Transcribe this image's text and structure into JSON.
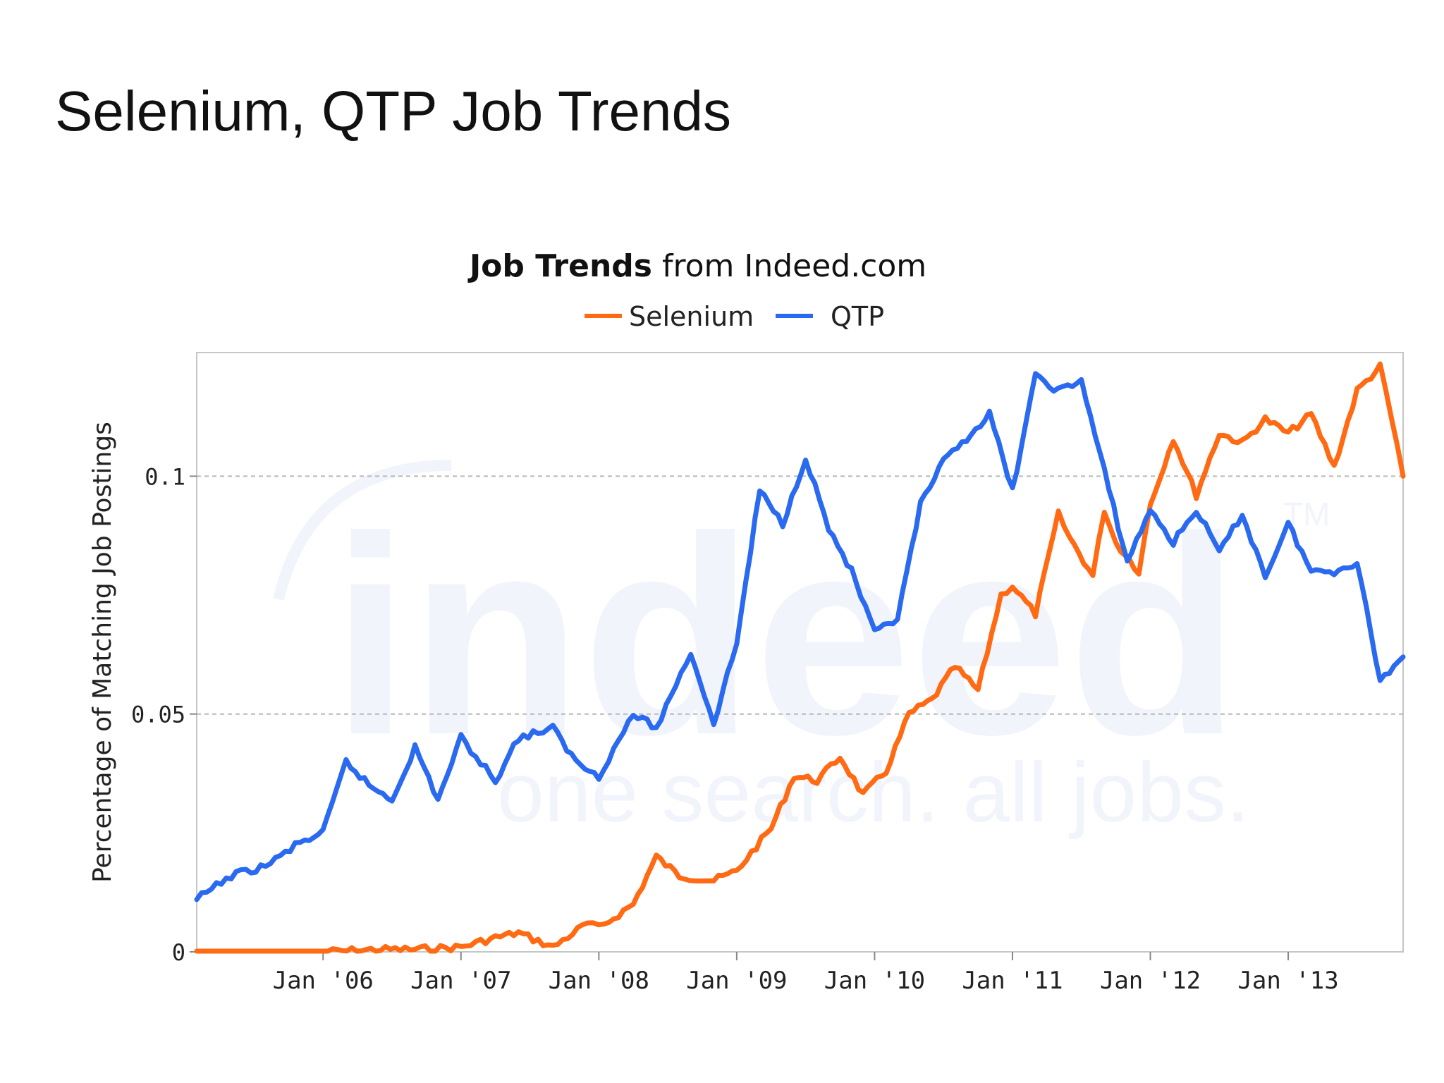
{
  "slide": {
    "title": "Selenium, QTP Job Trends"
  },
  "chart_data": {
    "type": "line",
    "title_bold": "Job Trends",
    "title_rest": " from Indeed.com",
    "ylabel": "Percentage of Matching Job Postings",
    "xlabel": "",
    "x_range": [
      "2005-02",
      "2013-11"
    ],
    "ylim": [
      0,
      0.126
    ],
    "y_ticks": [
      0,
      0.05,
      0.1
    ],
    "y_tick_labels": [
      "0",
      "0.05",
      "0.1"
    ],
    "x_ticks": [
      "2006-01",
      "2007-01",
      "2008-01",
      "2009-01",
      "2010-01",
      "2011-01",
      "2012-01",
      "2013-01"
    ],
    "x_tick_labels": [
      "Jan '06",
      "Jan '07",
      "Jan '08",
      "Jan '09",
      "Jan '10",
      "Jan '11",
      "Jan '12",
      "Jan '13"
    ],
    "grid": "horizontal dashed at 0.05 and 0.1",
    "legend_position": "top-center",
    "watermark": {
      "logo": "indeed",
      "tagline": "one search. all jobs.",
      "tm": "TM"
    },
    "series": [
      {
        "name": "Selenium",
        "color": "#ff6a13",
        "points": [
          [
            "2005-02",
            0
          ],
          [
            "2006-01",
            0
          ],
          [
            "2006-06",
            0.0005
          ],
          [
            "2006-09",
            0.0005
          ],
          [
            "2007-01",
            0.001
          ],
          [
            "2007-04",
            0.003
          ],
          [
            "2007-06",
            0.004
          ],
          [
            "2007-09",
            0.001
          ],
          [
            "2007-12",
            0.006
          ],
          [
            "2008-01",
            0.005
          ],
          [
            "2008-04",
            0.01
          ],
          [
            "2008-06",
            0.02
          ],
          [
            "2008-08",
            0.016
          ],
          [
            "2008-11",
            0.015
          ],
          [
            "2009-01",
            0.017
          ],
          [
            "2009-04",
            0.026
          ],
          [
            "2009-06",
            0.037
          ],
          [
            "2009-08",
            0.036
          ],
          [
            "2009-10",
            0.041
          ],
          [
            "2009-12",
            0.033
          ],
          [
            "2010-02",
            0.038
          ],
          [
            "2010-04",
            0.05
          ],
          [
            "2010-06",
            0.053
          ],
          [
            "2010-08",
            0.06
          ],
          [
            "2010-10",
            0.055
          ],
          [
            "2010-12",
            0.075
          ],
          [
            "2011-01",
            0.077
          ],
          [
            "2011-03",
            0.071
          ],
          [
            "2011-05",
            0.092
          ],
          [
            "2011-06",
            0.087
          ],
          [
            "2011-08",
            0.079
          ],
          [
            "2011-09",
            0.093
          ],
          [
            "2011-10",
            0.086
          ],
          [
            "2011-12",
            0.08
          ],
          [
            "2012-01",
            0.094
          ],
          [
            "2012-03",
            0.108
          ],
          [
            "2012-05",
            0.096
          ],
          [
            "2012-07",
            0.109
          ],
          [
            "2012-09",
            0.107
          ],
          [
            "2012-11",
            0.112
          ],
          [
            "2013-01",
            0.109
          ],
          [
            "2013-03",
            0.113
          ],
          [
            "2013-05",
            0.102
          ],
          [
            "2013-07",
            0.118
          ],
          [
            "2013-09",
            0.123
          ],
          [
            "2013-10",
            0.112
          ],
          [
            "2013-11",
            0.1
          ]
        ]
      },
      {
        "name": "QTP",
        "color": "#2a6af0",
        "points": [
          [
            "2005-02",
            0.011
          ],
          [
            "2005-05",
            0.016
          ],
          [
            "2005-08",
            0.018
          ],
          [
            "2005-11",
            0.023
          ],
          [
            "2006-01",
            0.025
          ],
          [
            "2006-03",
            0.04
          ],
          [
            "2006-05",
            0.035
          ],
          [
            "2006-07",
            0.032
          ],
          [
            "2006-09",
            0.043
          ],
          [
            "2006-11",
            0.032
          ],
          [
            "2007-01",
            0.045
          ],
          [
            "2007-04",
            0.036
          ],
          [
            "2007-06",
            0.045
          ],
          [
            "2007-09",
            0.047
          ],
          [
            "2007-11",
            0.04
          ],
          [
            "2008-01",
            0.037
          ],
          [
            "2008-04",
            0.05
          ],
          [
            "2008-06",
            0.047
          ],
          [
            "2008-09",
            0.063
          ],
          [
            "2008-11",
            0.048
          ],
          [
            "2009-01",
            0.065
          ],
          [
            "2009-03",
            0.097
          ],
          [
            "2009-05",
            0.09
          ],
          [
            "2009-07",
            0.104
          ],
          [
            "2009-09",
            0.089
          ],
          [
            "2009-11",
            0.08
          ],
          [
            "2010-01",
            0.067
          ],
          [
            "2010-03",
            0.07
          ],
          [
            "2010-05",
            0.094
          ],
          [
            "2010-07",
            0.103
          ],
          [
            "2010-09",
            0.108
          ],
          [
            "2010-11",
            0.113
          ],
          [
            "2011-01",
            0.097
          ],
          [
            "2011-03",
            0.121
          ],
          [
            "2011-05",
            0.118
          ],
          [
            "2011-07",
            0.12
          ],
          [
            "2011-09",
            0.101
          ],
          [
            "2011-11",
            0.082
          ],
          [
            "2012-01",
            0.093
          ],
          [
            "2012-03",
            0.086
          ],
          [
            "2012-05",
            0.093
          ],
          [
            "2012-07",
            0.084
          ],
          [
            "2012-09",
            0.092
          ],
          [
            "2012-11",
            0.079
          ],
          [
            "2013-01",
            0.09
          ],
          [
            "2013-03",
            0.08
          ],
          [
            "2013-05",
            0.08
          ],
          [
            "2013-07",
            0.082
          ],
          [
            "2013-09",
            0.057
          ],
          [
            "2013-11",
            0.062
          ]
        ]
      }
    ]
  }
}
